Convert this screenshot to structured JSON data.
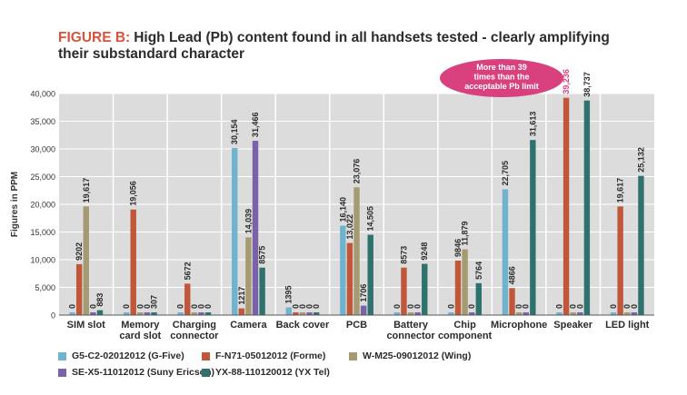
{
  "title": {
    "prefix": "FIGURE B:",
    "text": "High Lead (Pb) content found in all handsets tested - clearly amplifying their substandard character"
  },
  "callout": "More than 39 times than the acceptable Pb limit",
  "colors": {
    "series": [
      "#6fb3cf",
      "#c0573a",
      "#a69a72",
      "#7a62a8",
      "#2e716d"
    ],
    "plot_bg": "#dcdcdc",
    "callout_bg": "#d8417e",
    "highlight_label": "#d8417e"
  },
  "chart_data": {
    "type": "bar",
    "ylabel": "Figures in PPM",
    "ylim": [
      0,
      40000
    ],
    "yticks": [
      "0",
      "5,000",
      "10,000",
      "15,000",
      "20,000",
      "25,000",
      "30,000",
      "35,000",
      "40,000"
    ],
    "grid": true,
    "legend_position": "bottom",
    "categories": [
      "SIM slot",
      "Memory card slot",
      "Charging connector",
      "Camera",
      "Back cover",
      "PCB",
      "Battery connector",
      "Chip component",
      "Microphone",
      "Speaker",
      "LED light"
    ],
    "category_lines": [
      [
        "SIM slot"
      ],
      [
        "Memory",
        "card slot"
      ],
      [
        "Charging",
        "connector"
      ],
      [
        "Camera"
      ],
      [
        "Back cover"
      ],
      [
        "PCB"
      ],
      [
        "Battery",
        "connector"
      ],
      [
        "Chip",
        "component"
      ],
      [
        "Microphone"
      ],
      [
        "Speaker"
      ],
      [
        "LED light"
      ]
    ],
    "series": [
      {
        "name": "G5-C2-02012012 (G-Five)",
        "values": [
          0,
          0,
          0,
          30154,
          1395,
          16140,
          0,
          0,
          22705,
          0,
          0
        ],
        "labels": [
          "0",
          "0",
          "0",
          "30,154",
          "1395",
          "16,140",
          "0",
          "0",
          "22,705",
          "0",
          "0"
        ]
      },
      {
        "name": "F-N71-05012012 (Forme)",
        "values": [
          9202,
          19056,
          5672,
          1217,
          0,
          13022,
          8573,
          9846,
          4866,
          39236,
          19617
        ],
        "labels": [
          "9202",
          "19,056",
          "5672",
          "1217",
          "0",
          "13,022",
          "8573",
          "9846",
          "4866",
          "39,236",
          "19,617"
        ]
      },
      {
        "name": "W-M25-09012012 (Wing)",
        "values": [
          19617,
          0,
          0,
          14039,
          0,
          23076,
          0,
          11879,
          0,
          0,
          0
        ],
        "labels": [
          "19,617",
          "0",
          "0",
          "14,039",
          "0",
          "23,076",
          "0",
          "11,879",
          "0",
          "0",
          "0"
        ]
      },
      {
        "name": "SE-X5-11012012 (Suny Ericson)",
        "values": [
          0,
          0,
          0,
          31466,
          0,
          1706,
          0,
          0,
          0,
          0,
          0
        ],
        "labels": [
          "0",
          "0",
          "0",
          "31,466",
          "0",
          "1706",
          "0",
          "0",
          "0",
          "0",
          "0"
        ]
      },
      {
        "name": "YX-88-110120012 (YX Tel)",
        "values": [
          883,
          307,
          0,
          8575,
          0,
          14505,
          9248,
          5764,
          31613,
          38737,
          25132
        ],
        "labels": [
          "883",
          "307",
          "0",
          "8575",
          "0",
          "14,505",
          "9248",
          "5764",
          "31,613",
          "38,737",
          "25,132"
        ]
      }
    ]
  }
}
